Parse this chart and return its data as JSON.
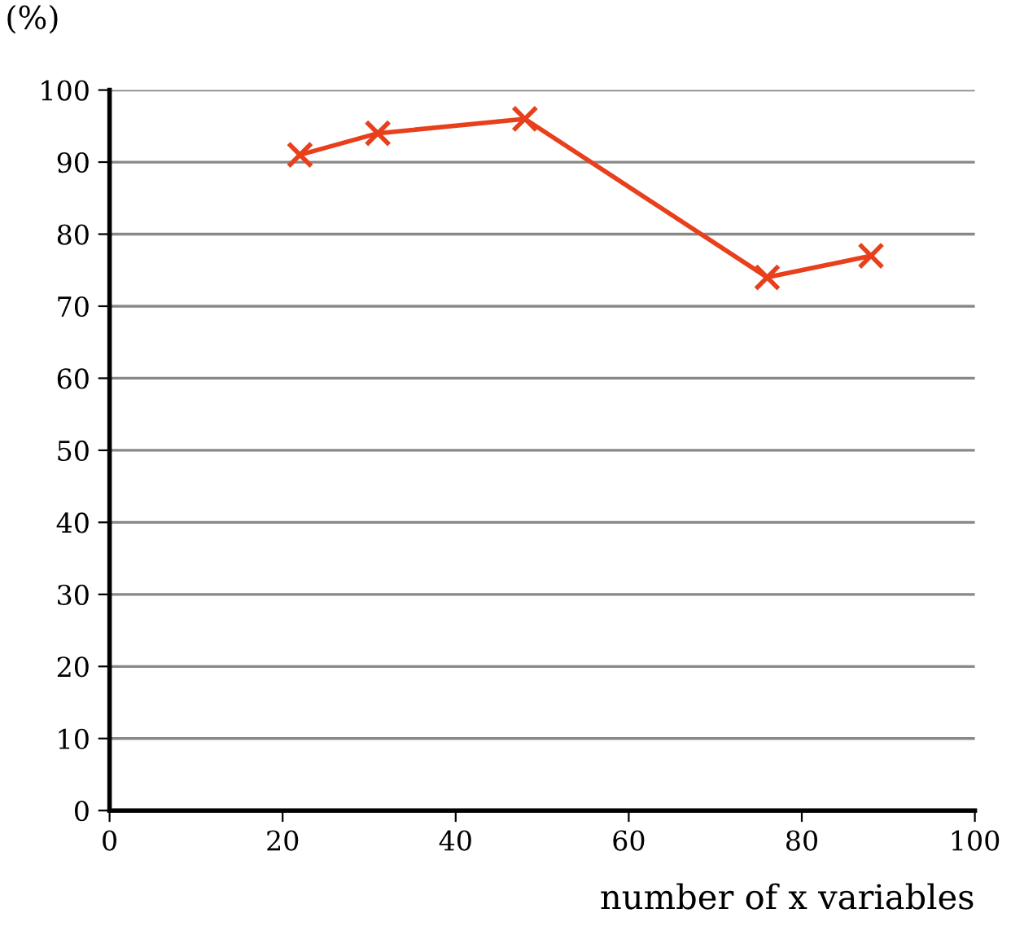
{
  "chart_data": {
    "type": "line",
    "ylabel": "(%)",
    "xlabel": "number of x variables",
    "x": [
      22,
      31,
      48,
      76,
      88
    ],
    "series": [
      {
        "color": "#e8401c",
        "values": [
          91,
          94,
          96,
          74,
          77
        ]
      }
    ],
    "xlim": [
      0,
      100
    ],
    "xticks": [
      0,
      20,
      40,
      60,
      80,
      100
    ],
    "ylim": [
      0,
      100
    ],
    "yticks": [
      0,
      10,
      20,
      30,
      40,
      50,
      60,
      70,
      80,
      90,
      100
    ],
    "grid": "y",
    "marker": "cross",
    "line_style": "solid",
    "legend": false
  }
}
